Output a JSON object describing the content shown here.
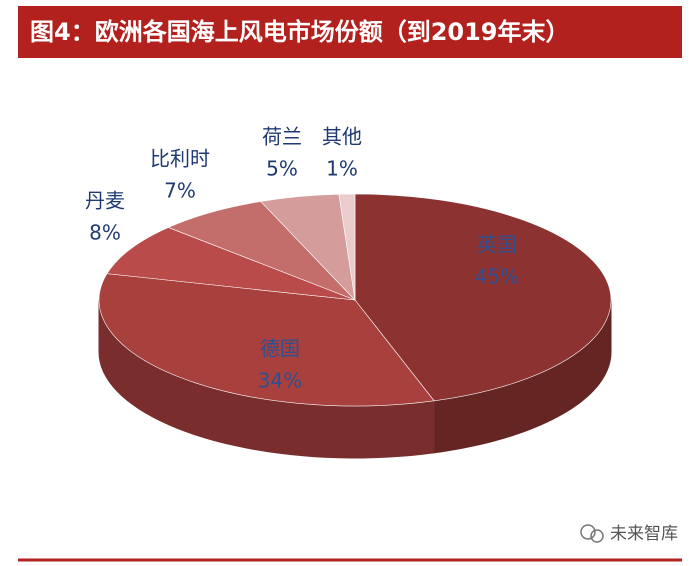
{
  "chart_data": {
    "type": "pie3d",
    "title": "图4：欧洲各国海上风电市场份额（到2019年末）",
    "categories": [
      "英国",
      "德国",
      "丹麦",
      "比利时",
      "荷兰",
      "其他"
    ],
    "values": [
      45,
      34,
      8,
      7,
      5,
      1
    ],
    "value_labels": [
      "45%",
      "34%",
      "8%",
      "7%",
      "5%",
      "1%"
    ],
    "colors": [
      "#8c3331",
      "#a8403e",
      "#b94c4a",
      "#c46e6b",
      "#d49c9a",
      "#e9cccb"
    ]
  },
  "watermark": "未来智库"
}
